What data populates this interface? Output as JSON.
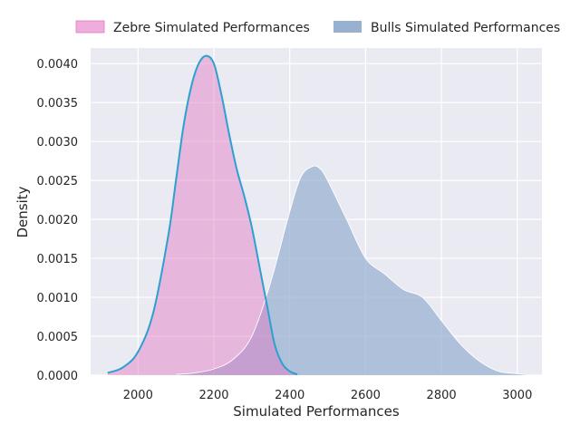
{
  "chart_data": {
    "type": "area",
    "title": "",
    "xlabel": "Simulated Performances",
    "ylabel": "Density",
    "xlim": [
      1875,
      3065
    ],
    "ylim": [
      0,
      0.0042
    ],
    "x_ticks": [
      2000,
      2200,
      2400,
      2600,
      2800,
      3000
    ],
    "y_ticks": [
      0,
      0.0005,
      0.001,
      0.0015,
      0.002,
      0.0025,
      0.003,
      0.0035,
      0.004
    ],
    "y_tick_labels": [
      "0.0000",
      "0.0005",
      "0.0010",
      "0.0015",
      "0.0020",
      "0.0025",
      "0.0030",
      "0.0035",
      "0.0040"
    ],
    "grid": true,
    "legend_position": "top",
    "series": [
      {
        "name": "Zebre Simulated Performances",
        "fill_color": "#e377c2",
        "line_color": "#2ca0d0",
        "x": [
          1920,
          1960,
          2000,
          2040,
          2080,
          2100,
          2120,
          2140,
          2160,
          2180,
          2200,
          2220,
          2240,
          2260,
          2280,
          2300,
          2320,
          2340,
          2360,
          2380,
          2400,
          2420
        ],
        "y": [
          3e-05,
          0.0001,
          0.0003,
          0.0008,
          0.0018,
          0.0025,
          0.0032,
          0.0037,
          0.004,
          0.0041,
          0.004,
          0.0036,
          0.0031,
          0.00265,
          0.0023,
          0.0019,
          0.0014,
          0.0009,
          0.0004,
          0.00015,
          5e-05,
          1e-05
        ]
      },
      {
        "name": "Bulls Simulated Performances",
        "fill_color": "#8da9cc",
        "line_color": "#ffffff",
        "x": [
          2100,
          2150,
          2200,
          2250,
          2300,
          2350,
          2400,
          2430,
          2460,
          2480,
          2500,
          2550,
          2600,
          2650,
          2700,
          2750,
          2800,
          2850,
          2900,
          2950,
          3000,
          3020
        ],
        "y": [
          1e-05,
          3e-05,
          8e-05,
          0.0002,
          0.0005,
          0.0012,
          0.0021,
          0.00255,
          0.00268,
          0.00265,
          0.0025,
          0.002,
          0.0015,
          0.0013,
          0.0011,
          0.001,
          0.0007,
          0.0004,
          0.00018,
          5e-05,
          2e-05,
          1e-05
        ]
      }
    ]
  }
}
